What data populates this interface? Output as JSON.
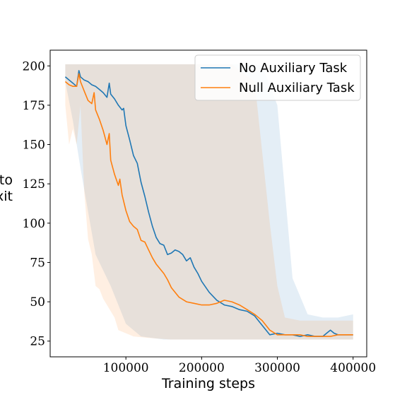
{
  "chart_data": {
    "type": "line",
    "title": "",
    "xlabel": "Training steps",
    "ylabel_visible_fragments": [
      "to",
      "xit"
    ],
    "xlim": [
      0,
      418000
    ],
    "ylim": [
      15,
      210
    ],
    "xticks": [
      100000,
      200000,
      300000,
      400000
    ],
    "xtick_labels": [
      "100000",
      "200000",
      "300000",
      "400000"
    ],
    "yticks": [
      25,
      50,
      75,
      100,
      125,
      150,
      175,
      200
    ],
    "ytick_labels": [
      "25",
      "50",
      "75",
      "100",
      "125",
      "150",
      "175",
      "200"
    ],
    "grid": false,
    "legend_position": "top-right",
    "series": [
      {
        "name": "No Auxiliary Task",
        "color": "#1f77b4",
        "x": [
          20000,
          25000,
          30000,
          35000,
          38000,
          40000,
          45000,
          50000,
          55000,
          60000,
          65000,
          70000,
          75000,
          78000,
          80000,
          85000,
          90000,
          95000,
          97000,
          100000,
          105000,
          110000,
          115000,
          120000,
          125000,
          130000,
          135000,
          140000,
          145000,
          150000,
          155000,
          160000,
          165000,
          170000,
          175000,
          180000,
          185000,
          190000,
          195000,
          200000,
          210000,
          220000,
          230000,
          240000,
          250000,
          260000,
          270000,
          280000,
          290000,
          300000,
          310000,
          320000,
          330000,
          340000,
          350000,
          360000,
          365000,
          370000,
          375000,
          380000,
          390000,
          400000
        ],
        "y": [
          193,
          191,
          189,
          187,
          197,
          193,
          191,
          190,
          188,
          187,
          185,
          183,
          180,
          189,
          182,
          179,
          175,
          172,
          173,
          162,
          153,
          143,
          138,
          126,
          117,
          107,
          98,
          91,
          87,
          86,
          80,
          81,
          83,
          82,
          80,
          76,
          78,
          72,
          68,
          63,
          56,
          51,
          48,
          47,
          45,
          44,
          41,
          35,
          29,
          30,
          29,
          29,
          28,
          29,
          28,
          28,
          30,
          32,
          30,
          29,
          29,
          29
        ]
      },
      {
        "name": "Null Auxiliary Task",
        "color": "#ff7f0e",
        "x": [
          20000,
          25000,
          30000,
          35000,
          38000,
          40000,
          45000,
          50000,
          55000,
          58000,
          60000,
          65000,
          70000,
          75000,
          78000,
          80000,
          85000,
          90000,
          92000,
          95000,
          100000,
          105000,
          110000,
          115000,
          120000,
          125000,
          130000,
          135000,
          140000,
          145000,
          150000,
          155000,
          160000,
          170000,
          180000,
          190000,
          200000,
          210000,
          220000,
          230000,
          240000,
          250000,
          260000,
          270000,
          280000,
          290000,
          300000,
          310000,
          320000,
          330000,
          340000,
          350000,
          360000,
          370000,
          380000,
          390000,
          400000
        ],
        "y": [
          190,
          188,
          187,
          187,
          195,
          190,
          184,
          178,
          176,
          183,
          172,
          166,
          159,
          150,
          157,
          140,
          131,
          124,
          128,
          118,
          108,
          101,
          98,
          96,
          89,
          88,
          83,
          78,
          74,
          71,
          68,
          64,
          59,
          53,
          50,
          49,
          48,
          48,
          49,
          51,
          50,
          48,
          45,
          42,
          38,
          32,
          29,
          29,
          29,
          29,
          28,
          28,
          28,
          28,
          29,
          29,
          29
        ]
      }
    ],
    "bands": [
      {
        "series": "No Auxiliary Task",
        "color": "#1f77b4",
        "x": [
          20000,
          30000,
          40000,
          60000,
          80000,
          100000,
          120000,
          150000,
          180000,
          200000,
          230000,
          250000,
          270000,
          280000,
          300000,
          320000,
          340000,
          360000,
          380000,
          400000
        ],
        "upper": [
          201,
          201,
          201,
          201,
          201,
          201,
          201,
          201,
          201,
          201,
          201,
          201,
          201,
          200,
          175,
          65,
          42,
          40,
          40,
          42
        ],
        "lower": [
          190,
          165,
          135,
          80,
          60,
          36,
          28,
          26,
          26,
          26,
          26,
          26,
          26,
          26,
          26,
          26,
          26,
          26,
          26,
          26
        ]
      },
      {
        "series": "Null Auxiliary Task",
        "color": "#ff7f0e",
        "x": [
          20000,
          25000,
          30000,
          35000,
          40000,
          45000,
          50000,
          55000,
          60000,
          65000,
          70000,
          75000,
          80000,
          85000,
          90000,
          100000,
          110000,
          130000,
          160000,
          200000,
          240000,
          270000,
          290000,
          300000,
          310000,
          330000,
          350000,
          380000,
          400000
        ],
        "upper": [
          201,
          201,
          201,
          201,
          201,
          201,
          201,
          201,
          201,
          201,
          201,
          201,
          201,
          201,
          201,
          201,
          201,
          201,
          201,
          201,
          201,
          190,
          100,
          60,
          40,
          38,
          38,
          38,
          38
        ],
        "lower": [
          175,
          150,
          160,
          150,
          175,
          120,
          90,
          80,
          60,
          58,
          52,
          48,
          44,
          40,
          32,
          30,
          28,
          27,
          26,
          26,
          26,
          26,
          26,
          26,
          26,
          26,
          26,
          26,
          26
        ]
      }
    ]
  }
}
